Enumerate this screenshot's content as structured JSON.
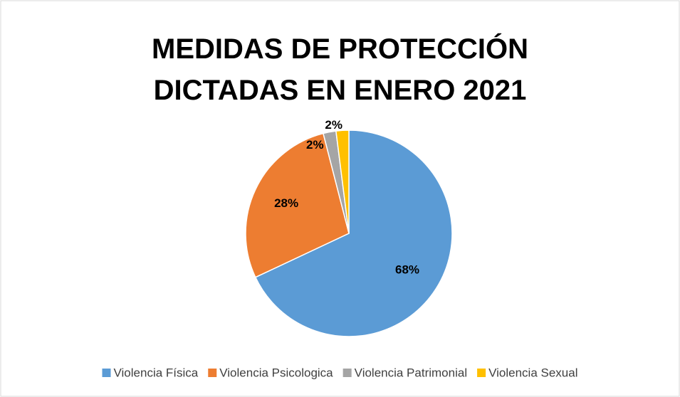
{
  "chart_data": {
    "type": "pie",
    "title": "MEDIDAS DE PROTECCIÓN DICTADAS EN ENERO 2021",
    "categories": [
      "Violencia Física",
      "Violencia Psicologica",
      "Violencia Patrimonial",
      "Violencia Sexual"
    ],
    "values": [
      68,
      28,
      2,
      2
    ],
    "value_labels": [
      "68%",
      "28%",
      "2%",
      "2%"
    ],
    "colors": [
      "#5b9bd5",
      "#ed7d31",
      "#a5a5a5",
      "#ffc000"
    ],
    "legend": "bottom"
  }
}
